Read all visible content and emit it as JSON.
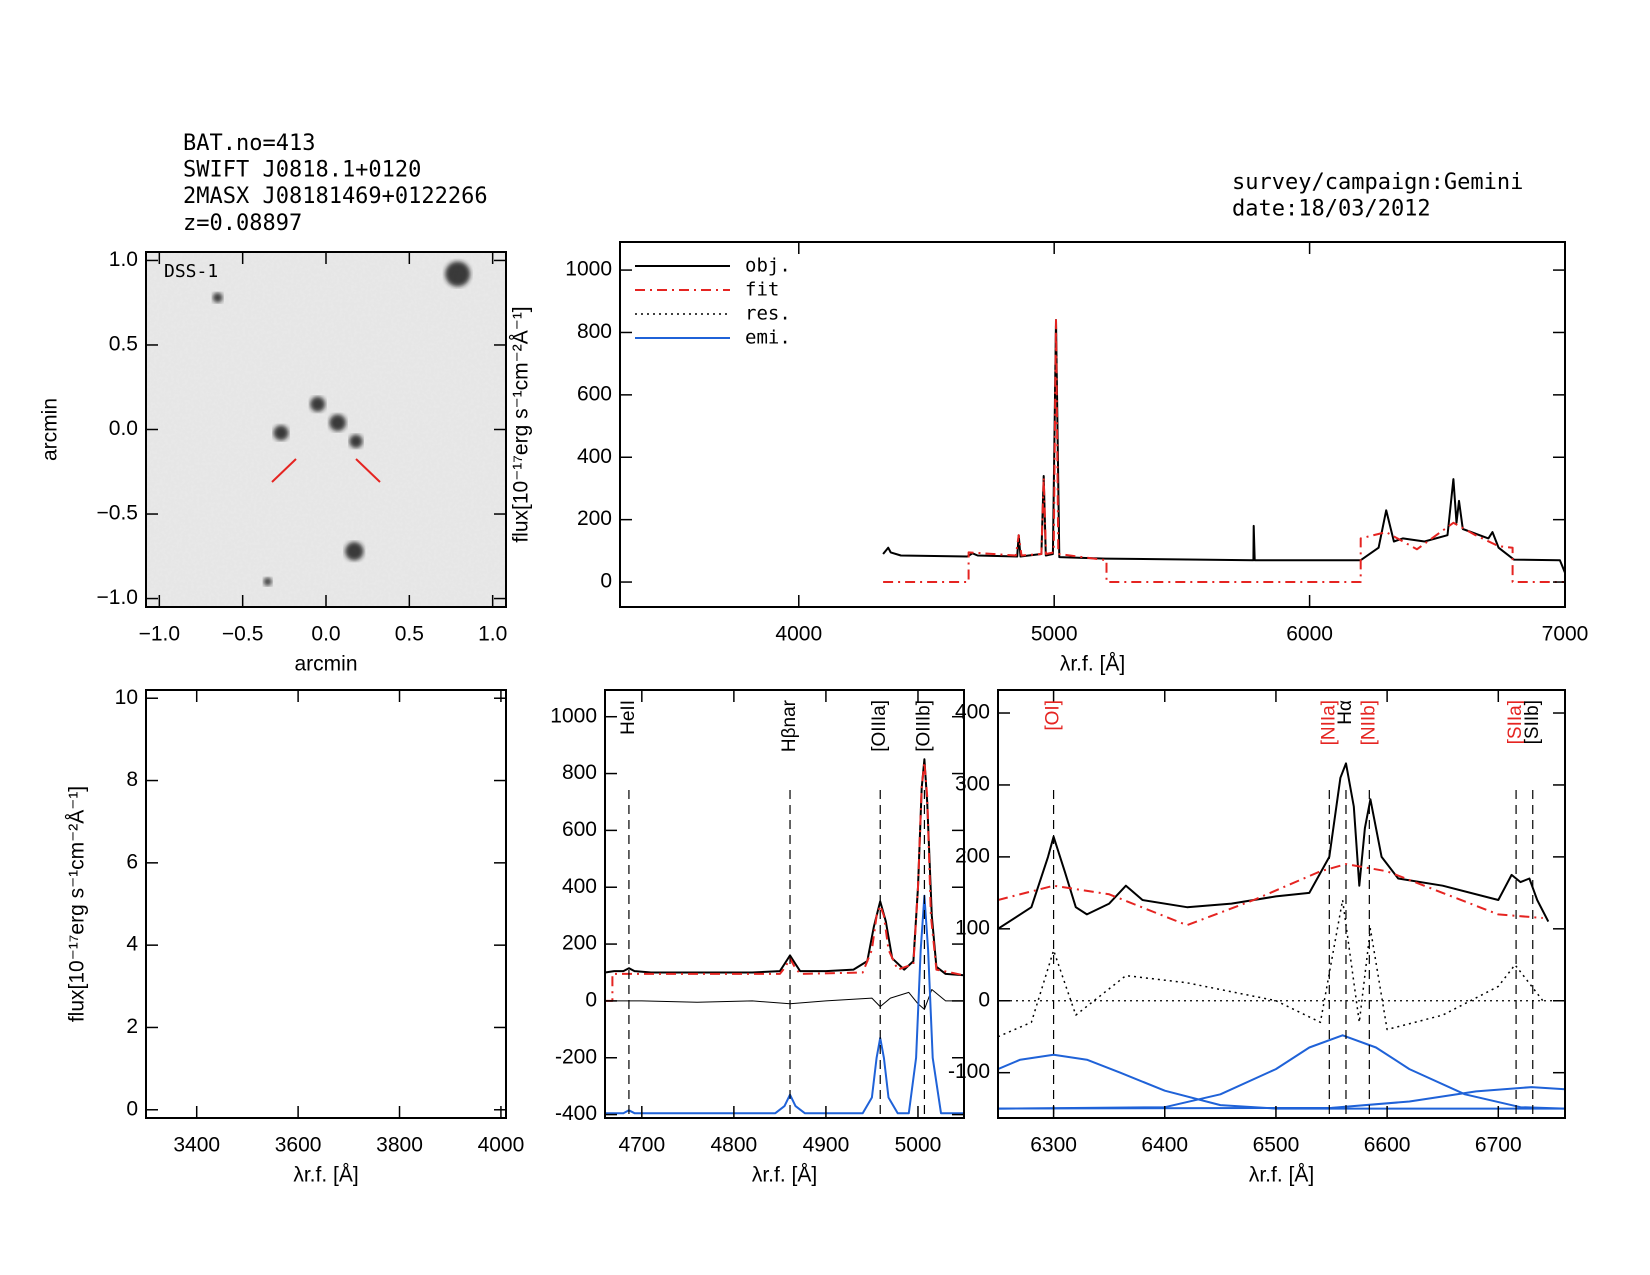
{
  "header": {
    "left": [
      "BAT.no=413",
      "SWIFT J0818.1+0120",
      "2MASX J08181469+0122266",
      "z=0.08897"
    ],
    "right": [
      "survey/campaign:Gemini",
      "date:18/03/2012"
    ]
  },
  "chart_data": [
    {
      "type": "image",
      "label": "DSS-1",
      "xlabel": "arcmin",
      "ylabel": "arcmin",
      "xlim": [
        -1.08,
        1.08
      ],
      "ylim": [
        -1.05,
        1.05
      ],
      "xticks": [
        {
          "value": -1,
          "label": "−1.0"
        },
        {
          "value": -0.5,
          "label": "−0.5"
        },
        {
          "value": 0,
          "label": "0.0"
        },
        {
          "value": 0.5,
          "label": "0.5"
        },
        {
          "value": 1,
          "label": "1.0"
        }
      ],
      "yticks": [
        {
          "value": -1,
          "label": "−1.0"
        },
        {
          "value": -0.5,
          "label": "−0.5"
        },
        {
          "value": 0,
          "label": "0.0"
        },
        {
          "value": 0.5,
          "label": "0.5"
        },
        {
          "value": 1,
          "label": "1.0"
        }
      ],
      "x": [
        0.79,
        -0.65,
        0.07,
        -0.27,
        0.17,
        -0.35,
        -0.05,
        0.18
      ],
      "y": [
        0.92,
        0.78,
        0.04,
        -0.02,
        -0.72,
        -0.9,
        0.15,
        -0.07
      ],
      "sizes": [
        0.075,
        0.03,
        0.05,
        0.045,
        0.055,
        0.025,
        0.045,
        0.04
      ]
    },
    {
      "type": "line",
      "xlabel": "λr.f. [Å]",
      "ylabel": "flux[10⁻¹⁷erg s⁻¹cm⁻²Å⁻¹]",
      "xlim": [
        3300,
        7000
      ],
      "ylim": [
        -80,
        1090
      ],
      "xticks": [
        4000,
        5000,
        6000,
        7000
      ],
      "yticks": [
        0,
        200,
        400,
        600,
        800,
        1000
      ],
      "legend": [
        {
          "name": "obj.",
          "color": "#000000",
          "style": "solid"
        },
        {
          "name": "fit",
          "color": "#e52421",
          "style": "dashdot"
        },
        {
          "name": "res.",
          "color": "#000000",
          "style": "dotted"
        },
        {
          "name": "emi.",
          "color": "#1f62d8",
          "style": "solid"
        }
      ],
      "series": [
        {
          "color": "#000000",
          "style": "solid",
          "x": [
            4330,
            4350,
            4360,
            4400,
            4660,
            4680,
            4700,
            4855,
            4861,
            4868,
            4950,
            4959,
            4967,
            4995,
            5007,
            5020,
            5200,
            5780,
            5781,
            5785,
            6200,
            6270,
            6300,
            6330,
            6365,
            6450,
            6540,
            6563,
            6575,
            6585,
            6600,
            6700,
            6716,
            6740,
            6800,
            6980,
            7000
          ],
          "values": [
            90,
            110,
            95,
            85,
            82,
            92,
            85,
            82,
            150,
            82,
            90,
            340,
            85,
            90,
            840,
            80,
            75,
            70,
            180,
            70,
            70,
            110,
            230,
            130,
            140,
            130,
            150,
            330,
            190,
            260,
            170,
            140,
            160,
            110,
            72,
            70,
            30
          ]
        },
        {
          "color": "#e52421",
          "style": "dashdot",
          "x": [
            4330,
            4665,
            4665,
            4850,
            4861,
            4872,
            4950,
            4959,
            4968,
            4998,
            5007,
            5016,
            5205,
            5205,
            6200,
            6200,
            6300,
            6420,
            6563,
            6650,
            6740,
            6795,
            6795,
            7000
          ],
          "values": [
            0,
            0,
            95,
            85,
            150,
            85,
            90,
            335,
            90,
            95,
            840,
            90,
            70,
            0,
            0,
            140,
            160,
            105,
            190,
            150,
            115,
            110,
            0,
            0
          ]
        }
      ]
    },
    {
      "type": "line",
      "xlabel": "λr.f. [Å]",
      "ylabel": "flux[10⁻¹⁷erg s⁻¹cm⁻²Å⁻¹]",
      "xlim": [
        3300,
        4010
      ],
      "ylim": [
        -0.2,
        10.2
      ],
      "xticks": [
        3400,
        3600,
        3800,
        4000
      ],
      "yticks": [
        0,
        2,
        4,
        6,
        8,
        10
      ],
      "series": []
    },
    {
      "type": "line",
      "xlabel": "λr.f. [Å]",
      "xlim": [
        4660,
        5050
      ],
      "ylim": [
        -412,
        1094
      ],
      "xticks": [
        4700,
        4800,
        4900,
        5000
      ],
      "yticks": [
        -400,
        -200,
        0,
        200,
        400,
        600,
        800,
        1000
      ],
      "lines": [
        {
          "label": "HeII",
          "x": 4686,
          "color": "#000000"
        },
        {
          "label": "Hβnar",
          "x": 4861,
          "color": "#000000"
        },
        {
          "label": "[OIIIa]",
          "x": 4959,
          "color": "#000000"
        },
        {
          "label": "[OIIIb]",
          "x": 5007,
          "color": "#000000"
        }
      ],
      "series": [
        {
          "color": "#000000",
          "style": "solid",
          "x": [
            4660,
            4670,
            4680,
            4686,
            4692,
            4710,
            4760,
            4820,
            4850,
            4855,
            4861,
            4867,
            4872,
            4900,
            4930,
            4945,
            4952,
            4959,
            4965,
            4972,
            4985,
            4995,
            5000,
            5004,
            5007,
            5010,
            5015,
            5020,
            5030,
            5050
          ],
          "values": [
            100,
            105,
            105,
            115,
            105,
            100,
            100,
            100,
            105,
            130,
            160,
            130,
            105,
            105,
            110,
            140,
            260,
            350,
            280,
            150,
            110,
            140,
            400,
            750,
            850,
            700,
            300,
            120,
            95,
            90
          ]
        },
        {
          "color": "#e52421",
          "style": "dashdot",
          "x": [
            4660,
            4668,
            4668,
            4700,
            4850,
            4856,
            4861,
            4866,
            4872,
            4940,
            4950,
            4955,
            4959,
            4963,
            4968,
            4978,
            4995,
            5000,
            5004,
            5007,
            5010,
            5014,
            5020,
            5050
          ],
          "values": [
            0,
            0,
            95,
            95,
            95,
            120,
            150,
            120,
            95,
            100,
            180,
            300,
            335,
            300,
            180,
            110,
            130,
            400,
            750,
            840,
            720,
            300,
            110,
            90
          ]
        },
        {
          "color": "#000000",
          "style": "thin",
          "x": [
            4660,
            4700,
            4760,
            4820,
            4861,
            4900,
            4950,
            4959,
            4970,
            4990,
            5000,
            5007,
            5015,
            5030,
            5050
          ],
          "values": [
            0,
            0,
            -5,
            0,
            -10,
            0,
            10,
            -20,
            10,
            30,
            -10,
            -30,
            40,
            0,
            0
          ]
        },
        {
          "color": "#1f62d8",
          "style": "solid",
          "x": [
            4660,
            4680,
            4686,
            4692,
            4710,
            4845,
            4855,
            4861,
            4867,
            4877,
            4940,
            4950,
            4955,
            4959,
            4963,
            4968,
            4978,
            4990,
            4998,
            5003,
            5007,
            5011,
            5016,
            5025,
            5050
          ],
          "values": [
            -395,
            -395,
            -385,
            -395,
            -395,
            -395,
            -370,
            -330,
            -370,
            -395,
            -395,
            -340,
            -200,
            -130,
            -200,
            -340,
            -395,
            -395,
            -200,
            180,
            370,
            180,
            -200,
            -395,
            -395
          ]
        }
      ]
    },
    {
      "type": "line",
      "xlabel": "λr.f. [Å]",
      "xlim": [
        6250,
        6760
      ],
      "ylim": [
        -163,
        432
      ],
      "xticks": [
        6300,
        6400,
        6500,
        6600,
        6700
      ],
      "yticks": [
        -100,
        0,
        100,
        200,
        300,
        400
      ],
      "lines": [
        {
          "label": "[OI]",
          "x": 6300,
          "color": "#e52421"
        },
        {
          "label": "[NIIa]",
          "x": 6548,
          "color": "#e52421"
        },
        {
          "label": "Hα",
          "x": 6563,
          "color": "#000000"
        },
        {
          "label": "[NIIb]",
          "x": 6584,
          "color": "#e52421"
        },
        {
          "label": "[SIIa]",
          "x": 6716,
          "color": "#e52421"
        },
        {
          "label": "[SIIb]",
          "x": 6731,
          "color": "#000000"
        }
      ],
      "series": [
        {
          "color": "#000000",
          "style": "solid",
          "x": [
            6250,
            6280,
            6295,
            6300,
            6310,
            6320,
            6330,
            6350,
            6365,
            6380,
            6420,
            6460,
            6500,
            6530,
            6548,
            6558,
            6563,
            6570,
            6575,
            6580,
            6585,
            6595,
            6610,
            6650,
            6700,
            6712,
            6720,
            6728,
            6735,
            6745
          ],
          "values": [
            100,
            130,
            200,
            228,
            180,
            130,
            120,
            135,
            160,
            140,
            130,
            135,
            145,
            150,
            200,
            310,
            330,
            270,
            160,
            240,
            280,
            200,
            170,
            160,
            140,
            175,
            165,
            170,
            140,
            110
          ]
        },
        {
          "color": "#e52421",
          "style": "dashdot",
          "x": [
            6250,
            6300,
            6350,
            6420,
            6480,
            6540,
            6563,
            6600,
            6650,
            6700,
            6740
          ],
          "values": [
            140,
            160,
            148,
            105,
            140,
            180,
            190,
            180,
            150,
            120,
            115
          ]
        },
        {
          "color": "#000000",
          "style": "dotted",
          "x": [
            6250,
            6280,
            6300,
            6320,
            6365,
            6420,
            6500,
            6540,
            6560,
            6575,
            6585,
            6600,
            6650,
            6700,
            6715,
            6740
          ],
          "values": [
            -50,
            -30,
            70,
            -20,
            35,
            25,
            0,
            -30,
            140,
            -30,
            100,
            -40,
            -20,
            20,
            50,
            0
          ]
        },
        {
          "color": "#1f62d8",
          "style": "solid",
          "x": [
            6250,
            6270,
            6300,
            6330,
            6360,
            6400,
            6450,
            6500,
            6760
          ],
          "values": [
            -95,
            -82,
            -75,
            -82,
            -100,
            -125,
            -145,
            -150,
            -150
          ]
        },
        {
          "color": "#1f62d8",
          "style": "solid",
          "x": [
            6250,
            6400,
            6450,
            6500,
            6530,
            6560,
            6590,
            6620,
            6670,
            6720,
            6760
          ],
          "values": [
            -150,
            -148,
            -130,
            -95,
            -65,
            -48,
            -65,
            -95,
            -130,
            -148,
            -150
          ]
        },
        {
          "color": "#1f62d8",
          "style": "solid",
          "x": [
            6250,
            6550,
            6620,
            6680,
            6730,
            6760
          ],
          "values": [
            -150,
            -149,
            -140,
            -126,
            -120,
            -123
          ]
        }
      ]
    }
  ]
}
